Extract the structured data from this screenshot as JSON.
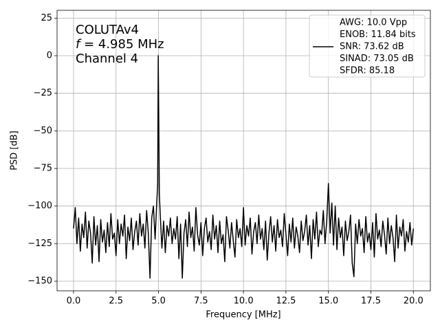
{
  "chart_data": {
    "type": "line",
    "annotations": [
      "COLUTAv4",
      "f = 4.985 MHz",
      "Channel 4"
    ],
    "xlabel": "Frequency [MHz]",
    "ylabel": "PSD [dB]",
    "xlim": [
      -0.97,
      21.0
    ],
    "ylim": [
      -156.4,
      30.2
    ],
    "xticks": [
      {
        "value": 0,
        "label": "0.0"
      },
      2.5,
      {
        "value": 5,
        "label": "5.0"
      },
      7.5,
      {
        "value": 10,
        "label": "10.0"
      },
      12.5,
      {
        "value": 15,
        "label": "15.0"
      },
      17.5,
      {
        "value": 20,
        "label": "20.0"
      }
    ],
    "yticks": [
      25,
      0,
      {
        "value": -25,
        "label": "−25"
      },
      {
        "value": -50,
        "label": "−50"
      },
      {
        "value": -75,
        "label": "−75"
      },
      {
        "value": -100,
        "label": "−100"
      },
      {
        "value": -125,
        "label": "−125"
      },
      {
        "value": -150,
        "label": "−150"
      }
    ],
    "grid": true,
    "legend": "upper right",
    "x": [
      0,
      0.1,
      0.2,
      0.3,
      0.4,
      0.5,
      0.6,
      0.7,
      0.8,
      0.9,
      1,
      1.1,
      1.2,
      1.3,
      1.4,
      1.5,
      1.6,
      1.7,
      1.8,
      1.9,
      2,
      2.1,
      2.2,
      2.3,
      2.4,
      2.5,
      2.6,
      2.7,
      2.8,
      2.9,
      3,
      3.1,
      3.2,
      3.3,
      3.4,
      3.5,
      3.6,
      3.7,
      3.8,
      3.9,
      4,
      4.1,
      4.2,
      4.3,
      4.4,
      4.5,
      4.6,
      4.7,
      4.8,
      4.9,
      4.95,
      4.985,
      5.05,
      5.1,
      5.2,
      5.3,
      5.4,
      5.5,
      5.6,
      5.7,
      5.8,
      5.9,
      6,
      6.1,
      6.2,
      6.3,
      6.4,
      6.5,
      6.6,
      6.7,
      6.8,
      6.9,
      7,
      7.1,
      7.2,
      7.3,
      7.4,
      7.5,
      7.6,
      7.7,
      7.8,
      7.9,
      8,
      8.1,
      8.2,
      8.3,
      8.4,
      8.5,
      8.6,
      8.7,
      8.8,
      8.9,
      9,
      9.1,
      9.2,
      9.3,
      9.4,
      9.5,
      9.6,
      9.7,
      9.8,
      9.9,
      10,
      10.1,
      10.2,
      10.3,
      10.4,
      10.5,
      10.6,
      10.7,
      10.8,
      10.9,
      11,
      11.1,
      11.2,
      11.3,
      11.4,
      11.5,
      11.6,
      11.7,
      11.8,
      11.9,
      12,
      12.1,
      12.2,
      12.3,
      12.4,
      12.5,
      12.6,
      12.7,
      12.8,
      12.9,
      13,
      13.1,
      13.2,
      13.3,
      13.4,
      13.5,
      13.6,
      13.7,
      13.8,
      13.9,
      14,
      14.1,
      14.2,
      14.3,
      14.4,
      14.5,
      14.6,
      14.7,
      14.8,
      14.9,
      15,
      15.1,
      15.2,
      15.3,
      15.4,
      15.5,
      15.6,
      15.7,
      15.8,
      15.9,
      16,
      16.1,
      16.2,
      16.3,
      16.4,
      16.5,
      16.6,
      16.7,
      16.8,
      16.9,
      17,
      17.1,
      17.2,
      17.3,
      17.4,
      17.5,
      17.6,
      17.7,
      17.8,
      17.9,
      18,
      18.1,
      18.2,
      18.3,
      18.4,
      18.5,
      18.6,
      18.7,
      18.8,
      18.9,
      19,
      19.1,
      19.2,
      19.3,
      19.4,
      19.5,
      19.6,
      19.7,
      19.8,
      19.9,
      20
    ],
    "series": [
      {
        "name": [
          "AWG: 10.0 Vpp",
          "ENOB: 11.84 bits",
          "SNR: 73.62 dB",
          "SINAD: 73.05 dB",
          "SFDR: 85.18"
        ],
        "color": "#000000",
        "values": [
          -115,
          -101,
          -125,
          -108,
          -130,
          -112,
          -121,
          -104,
          -128,
          -110,
          -118,
          -138,
          -107,
          -126,
          -113,
          -137,
          -109,
          -124,
          -116,
          -131,
          -111,
          -127,
          -105,
          -122,
          -118,
          -133,
          -109,
          -125,
          -112,
          -120,
          -106,
          -135,
          -114,
          -123,
          -108,
          -129,
          -117,
          -110,
          -126,
          -105,
          -120,
          -112,
          -128,
          -103,
          -118,
          -148,
          -108,
          -100,
          -122,
          -97,
          -86,
          0,
          -92,
          -105,
          -128,
          -110,
          -131,
          -113,
          -120,
          -108,
          -125,
          -115,
          -122,
          -107,
          -135,
          -112,
          -148,
          -118,
          -109,
          -127,
          -104,
          -121,
          -114,
          -130,
          -101,
          -119,
          -126,
          -111,
          -133,
          -115,
          -108,
          -124,
          -117,
          -129,
          -106,
          -122,
          -113,
          -131,
          -110,
          -125,
          -119,
          -137,
          -107,
          -116,
          -128,
          -111,
          -123,
          -134,
          -109,
          -121,
          -115,
          -127,
          -101,
          -126,
          -113,
          -120,
          -108,
          -132,
          -117,
          -111,
          -125,
          -106,
          -122,
          -115,
          -129,
          -110,
          -136,
          -118,
          -107,
          -124,
          -113,
          -130,
          -109,
          -121,
          -116,
          -127,
          -105,
          -119,
          -133,
          -112,
          -124,
          -108,
          -128,
          -114,
          -120,
          -131,
          -110,
          -123,
          -117,
          -106,
          -126,
          -113,
          -135,
          -109,
          -122,
          -104,
          -127,
          -116,
          -119,
          -103,
          -125,
          -110,
          -85,
          -118,
          -98,
          -126,
          -100,
          -129,
          -108,
          -121,
          -114,
          -133,
          -110,
          -123,
          -117,
          -106,
          -138,
          -147,
          -112,
          -125,
          -109,
          -120,
          -115,
          -131,
          -107,
          -124,
          -118,
          -129,
          -111,
          -134,
          -105,
          -122,
          -116,
          -127,
          -110,
          -119,
          -132,
          -108,
          -125,
          -113,
          -121,
          -137,
          -106,
          -128,
          -114,
          -120,
          -109,
          -130,
          -117,
          -124,
          -111,
          -126,
          -115
        ]
      }
    ]
  }
}
